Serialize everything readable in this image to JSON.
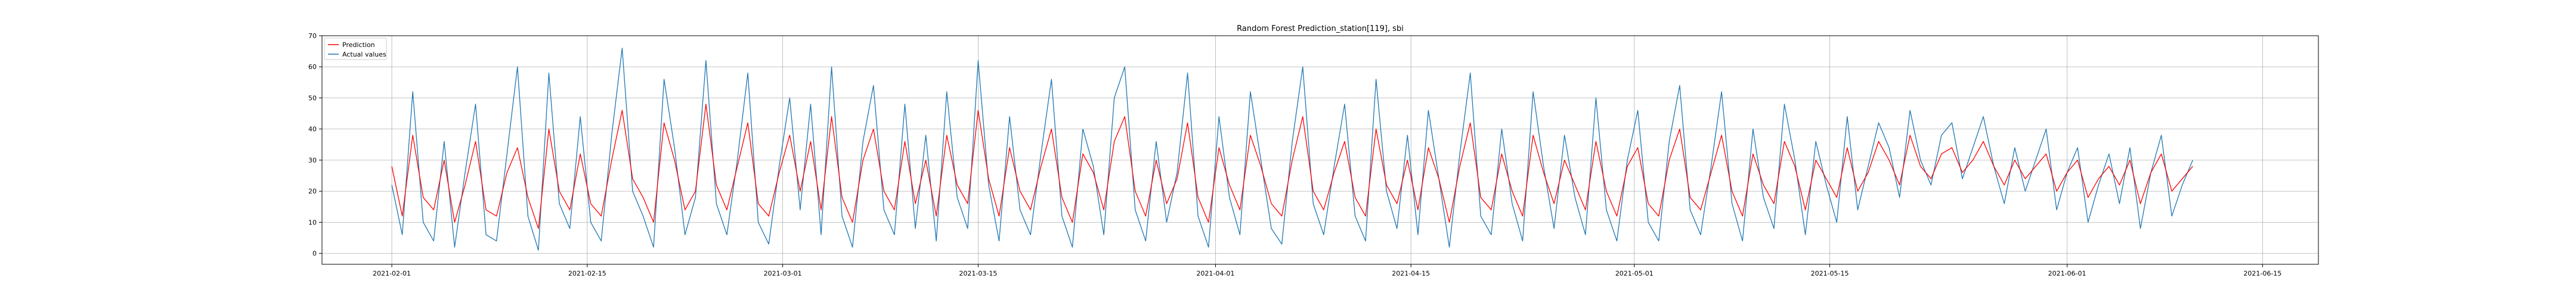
{
  "chart_data": {
    "type": "line",
    "title": "Random Forest Prediction_station[119], sbi",
    "xlabel": "",
    "ylabel": "",
    "x_start": "2021-02-01",
    "x_end": "2021-06-10",
    "xlim": [
      "2021-01-27",
      "2021-06-19"
    ],
    "ylim": [
      -3.5,
      70
    ],
    "grid": true,
    "legend_position": "top-left",
    "x_tick_labels": [
      "2021-02-01",
      "2021-02-15",
      "2021-03-01",
      "2021-03-15",
      "2021-04-01",
      "2021-04-15",
      "2021-05-01",
      "2021-05-15",
      "2021-06-01",
      "2021-06-15"
    ],
    "y_tick_labels": [
      "0",
      "10",
      "20",
      "30",
      "40",
      "50",
      "60",
      "70"
    ],
    "series": [
      {
        "name": "Prediction",
        "color": "#ff0000",
        "values": [
          28,
          12,
          38,
          18,
          14,
          30,
          10,
          22,
          36,
          14,
          12,
          26,
          34,
          18,
          8,
          40,
          20,
          14,
          32,
          16,
          12,
          30,
          46,
          24,
          18,
          10,
          42,
          30,
          14,
          20,
          48,
          22,
          14,
          28,
          42,
          16,
          12,
          26,
          38,
          20,
          36,
          14,
          44,
          18,
          10,
          30,
          40,
          20,
          14,
          36,
          16,
          30,
          12,
          38,
          22,
          16,
          46,
          24,
          12,
          34,
          20,
          14,
          28,
          40,
          18,
          10,
          32,
          26,
          14,
          36,
          44,
          20,
          12,
          30,
          16,
          24,
          42,
          18,
          10,
          34,
          22,
          14,
          38,
          28,
          16,
          12,
          30,
          44,
          20,
          14,
          26,
          36,
          18,
          12,
          40,
          22,
          16,
          30,
          14,
          34,
          24,
          10,
          28,
          42,
          18,
          14,
          32,
          20,
          12,
          38,
          26,
          16,
          30,
          22,
          14,
          36,
          20,
          12,
          28,
          34,
          16,
          12,
          30,
          40,
          18,
          14,
          26,
          38,
          20,
          12,
          32,
          22,
          16,
          36,
          28,
          14,
          30,
          24,
          18,
          34,
          20,
          26,
          36,
          30,
          22,
          38,
          28,
          24,
          32,
          34,
          26,
          30,
          36,
          28,
          22,
          30,
          24,
          28,
          32,
          20,
          26,
          30,
          18,
          24,
          28,
          22,
          30,
          16,
          26,
          32,
          20,
          24,
          28
        ]
      },
      {
        "name": "Actual values",
        "color": "#1f77b4",
        "values": [
          22,
          6,
          52,
          10,
          4,
          36,
          2,
          26,
          48,
          6,
          4,
          32,
          60,
          12,
          1,
          58,
          16,
          8,
          44,
          10,
          4,
          38,
          66,
          20,
          12,
          2,
          56,
          34,
          6,
          18,
          62,
          16,
          6,
          30,
          58,
          10,
          3,
          28,
          50,
          14,
          48,
          6,
          60,
          12,
          2,
          36,
          54,
          14,
          6,
          48,
          8,
          38,
          4,
          52,
          18,
          8,
          62,
          22,
          4,
          44,
          14,
          6,
          32,
          56,
          12,
          2,
          40,
          28,
          6,
          50,
          60,
          14,
          4,
          36,
          10,
          26,
          58,
          12,
          2,
          44,
          18,
          6,
          52,
          30,
          8,
          3,
          36,
          60,
          16,
          6,
          28,
          48,
          12,
          4,
          56,
          20,
          8,
          38,
          6,
          46,
          24,
          2,
          32,
          58,
          12,
          6,
          40,
          16,
          4,
          52,
          28,
          8,
          38,
          18,
          6,
          50,
          14,
          4,
          30,
          46,
          10,
          4,
          36,
          54,
          14,
          6,
          28,
          52,
          16,
          4,
          40,
          18,
          8,
          48,
          30,
          6,
          36,
          22,
          10,
          44,
          14,
          28,
          42,
          34,
          18,
          46,
          30,
          22,
          38,
          42,
          24,
          34,
          44,
          28,
          16,
          34,
          20,
          30,
          40,
          14,
          26,
          34,
          10,
          22,
          32,
          16,
          34,
          8,
          26,
          38,
          12,
          22,
          30
        ]
      }
    ]
  }
}
